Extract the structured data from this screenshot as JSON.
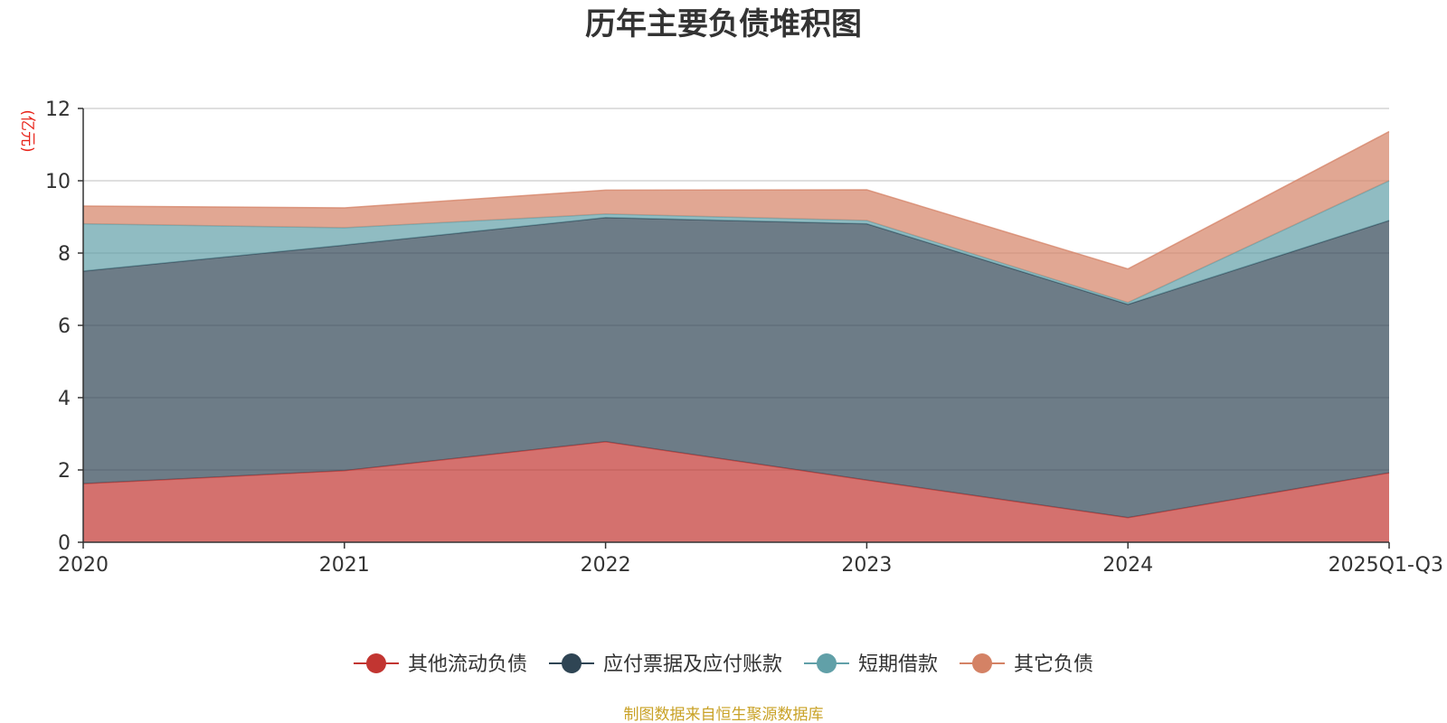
{
  "chart_data": {
    "type": "area",
    "stacked": true,
    "title": "历年主要负债堆积图",
    "unit_label": "(亿元)",
    "categories": [
      "2020",
      "2021",
      "2022",
      "2023",
      "2024",
      "2025Q1-Q3"
    ],
    "ylim": [
      0,
      12
    ],
    "yticks": [
      0,
      2,
      4,
      6,
      8,
      10,
      12
    ],
    "grid": true,
    "legend_position": "bottom-center",
    "series": [
      {
        "name": "其他流动负债",
        "color": "#c23531",
        "values": [
          1.62,
          1.98,
          2.78,
          1.72,
          0.68,
          1.92
        ]
      },
      {
        "name": "应付票据及应付账款",
        "color": "#2f4554",
        "values": [
          5.88,
          6.24,
          6.2,
          7.09,
          5.9,
          6.98
        ]
      },
      {
        "name": "短期借款",
        "color": "#61a0a8",
        "values": [
          1.31,
          0.48,
          0.1,
          0.09,
          0.05,
          1.1
        ]
      },
      {
        "name": "其它负债",
        "color": "#d48265",
        "values": [
          0.49,
          0.55,
          0.66,
          0.85,
          0.93,
          1.36
        ]
      }
    ],
    "source": "制图数据来自恒生聚源数据库"
  }
}
